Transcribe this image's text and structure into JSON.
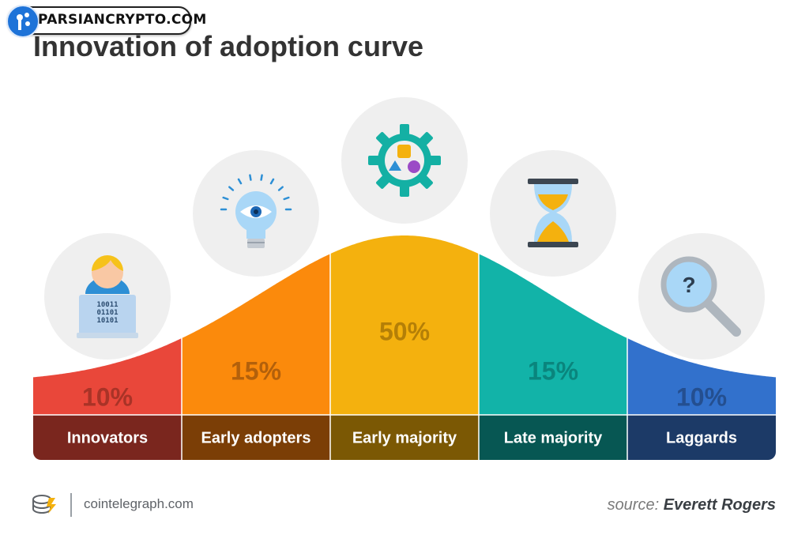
{
  "watermark": "PARSIANCRYPTO.COM",
  "title": "Innovation of adoption curve",
  "chart_data": {
    "type": "area",
    "title": "Innovation of adoption curve",
    "categories": [
      "Innovators",
      "Early adopters",
      "Early majority",
      "Late majority",
      "Laggards"
    ],
    "values": [
      10,
      15,
      50,
      15,
      10
    ],
    "value_labels": [
      "10%",
      "15%",
      "50%",
      "15%",
      "10%"
    ],
    "icons": [
      "user-laptop-icon",
      "lightbulb-eye-icon",
      "gear-shapes-icon",
      "hourglass-icon",
      "magnifier-question-icon"
    ],
    "colors": {
      "curve": [
        "#e9473a",
        "#fb8a0c",
        "#f4b10e",
        "#12b3a8",
        "#3271cc"
      ],
      "band": [
        "#7a261e",
        "#7b3e06",
        "#7b5804",
        "#075753",
        "#1c3a67"
      ],
      "pct_text": [
        "#a93327",
        "#b3600b",
        "#b47f07",
        "#0a857d",
        "#244f90"
      ]
    },
    "grid": false,
    "legend": "none"
  },
  "footer": {
    "site": "cointelegraph.com",
    "source_prefix": "source:",
    "source_name": "Everett Rogers"
  }
}
